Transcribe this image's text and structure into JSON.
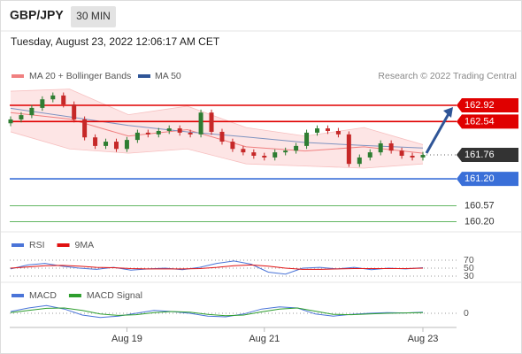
{
  "header": {
    "symbol": "GBP/JPY",
    "interval": "30 MIN",
    "timestamp": "Tuesday, August 23, 2022 12:06:17 AM CET"
  },
  "chart_data": {
    "type": "candlestick",
    "legend": [
      "MA 20 + Bollinger Bands",
      "MA 50"
    ],
    "credit": "Research © 2022 Trading Central",
    "ylim": [
      159.96,
      163.52
    ],
    "categories": [
      null,
      null,
      null,
      null,
      null,
      null,
      null,
      null,
      null,
      null,
      null,
      "Aug 19",
      null,
      null,
      null,
      null,
      null,
      null,
      null,
      null,
      null,
      null,
      null,
      null,
      "Aug 21",
      null,
      null,
      null,
      null,
      null,
      null,
      null,
      null,
      null,
      null,
      null,
      null,
      null,
      null,
      "Aug 23"
    ],
    "open": [
      162.5,
      162.59,
      162.69,
      162.86,
      163.06,
      163.15,
      162.94,
      162.59,
      162.17,
      161.97,
      162.07,
      161.9,
      162.11,
      162.28,
      162.24,
      162.32,
      162.38,
      162.28,
      162.24,
      162.75,
      162.3,
      162.07,
      161.9,
      161.82,
      161.74,
      161.7,
      161.82,
      161.86,
      161.97,
      162.28,
      162.38,
      162.32,
      162.24,
      161.55,
      161.7,
      161.82,
      162.03,
      161.86,
      161.74,
      161.7
    ],
    "high": [
      162.66,
      162.76,
      162.93,
      163.13,
      163.22,
      163.22,
      163.01,
      162.66,
      162.24,
      162.14,
      162.14,
      162.18,
      162.35,
      162.35,
      162.39,
      162.45,
      162.45,
      162.35,
      162.82,
      162.82,
      162.37,
      162.14,
      161.97,
      161.89,
      161.81,
      161.89,
      161.93,
      162.04,
      162.35,
      162.45,
      162.45,
      162.39,
      162.31,
      161.77,
      161.89,
      162.1,
      162.1,
      161.93,
      161.81,
      161.83
    ],
    "low": [
      162.43,
      162.52,
      162.62,
      162.79,
      162.99,
      162.87,
      162.52,
      162.1,
      161.9,
      161.9,
      161.83,
      161.83,
      162.04,
      162.17,
      162.17,
      162.25,
      162.21,
      162.17,
      162.17,
      162.23,
      162.0,
      161.83,
      161.75,
      161.67,
      161.63,
      161.63,
      161.75,
      161.79,
      161.9,
      162.21,
      162.25,
      162.17,
      161.48,
      161.48,
      161.63,
      161.75,
      161.79,
      161.67,
      161.63,
      161.63
    ],
    "close": [
      162.59,
      162.69,
      162.86,
      163.06,
      163.15,
      162.94,
      162.59,
      162.17,
      161.97,
      162.07,
      161.9,
      162.11,
      162.28,
      162.24,
      162.32,
      162.38,
      162.28,
      162.24,
      162.75,
      162.3,
      162.07,
      161.9,
      161.82,
      161.74,
      161.7,
      161.82,
      161.86,
      161.97,
      162.28,
      162.38,
      162.32,
      162.24,
      161.55,
      161.7,
      161.82,
      162.03,
      161.86,
      161.74,
      161.7,
      161.76
    ],
    "up_color": "#2e7d32",
    "down_color": "#c62828",
    "bollinger": {
      "color": "#f08080",
      "upper": [
        163.25,
        163.3,
        162.7,
        162.9,
        162.4,
        162.2,
        162.4,
        162.0
      ],
      "middle": [
        162.75,
        162.6,
        162.2,
        162.35,
        161.95,
        161.85,
        161.95,
        161.8
      ],
      "lower": [
        162.3,
        161.9,
        161.8,
        161.9,
        161.55,
        161.5,
        161.45,
        161.55
      ]
    },
    "ma50": {
      "color": "#2f5597",
      "values": [
        162.85,
        162.65,
        162.45,
        162.3,
        162.18,
        162.05,
        161.98,
        161.92
      ]
    },
    "levels": [
      {
        "value": 162.92,
        "label": "162.92",
        "color": "#e00000",
        "box": true
      },
      {
        "value": 162.54,
        "label": "162.54",
        "color": "#e00000",
        "box": true
      },
      {
        "value": 161.76,
        "label": "161.76",
        "color": "#333333",
        "box": true,
        "dotted": true
      },
      {
        "value": 161.2,
        "label": "161.20",
        "color": "#3a6fd8",
        "box": true
      },
      {
        "value": 160.57,
        "label": "160.57",
        "color": "#2e9e2e",
        "box": false
      },
      {
        "value": 160.2,
        "label": "160.20",
        "color": "#2e9e2e",
        "box": false
      }
    ],
    "rsi": {
      "ylim": [
        0,
        100
      ],
      "yticks": [
        70,
        50,
        30
      ],
      "series": [
        {
          "name": "RSI",
          "color": "#4a74d8",
          "values": [
            48,
            58,
            62,
            55,
            50,
            47,
            52,
            45,
            48,
            50,
            46,
            52,
            62,
            68,
            60,
            40,
            35,
            50,
            52,
            48,
            52,
            46,
            50,
            48,
            51
          ]
        },
        {
          "name": "9MA",
          "color": "#e01010",
          "values": [
            50,
            53,
            56,
            57,
            55,
            52,
            51,
            49,
            48,
            48,
            48,
            49,
            52,
            56,
            58,
            55,
            50,
            47,
            47,
            48,
            49,
            49,
            49,
            49,
            50
          ]
        }
      ]
    },
    "macd": {
      "ylim": [
        -0.4,
        0.4
      ],
      "yticks": [
        0
      ],
      "series": [
        {
          "name": "MACD",
          "color": "#4a74d8",
          "values": [
            0.05,
            0.15,
            0.22,
            0.12,
            -0.05,
            -0.12,
            -0.08,
            0.0,
            0.08,
            0.05,
            0.0,
            -0.08,
            -0.1,
            -0.02,
            0.12,
            0.18,
            0.15,
            -0.02,
            -0.08,
            -0.03,
            0.0,
            0.02,
            0.01,
            0.03
          ]
        },
        {
          "name": "MACD Signal",
          "color": "#2e9e2e",
          "values": [
            0.02,
            0.08,
            0.14,
            0.15,
            0.08,
            -0.02,
            -0.06,
            -0.04,
            0.02,
            0.05,
            0.03,
            -0.03,
            -0.07,
            -0.05,
            0.04,
            0.12,
            0.15,
            0.06,
            -0.03,
            -0.04,
            -0.02,
            0.0,
            0.01,
            0.02
          ]
        }
      ]
    }
  }
}
